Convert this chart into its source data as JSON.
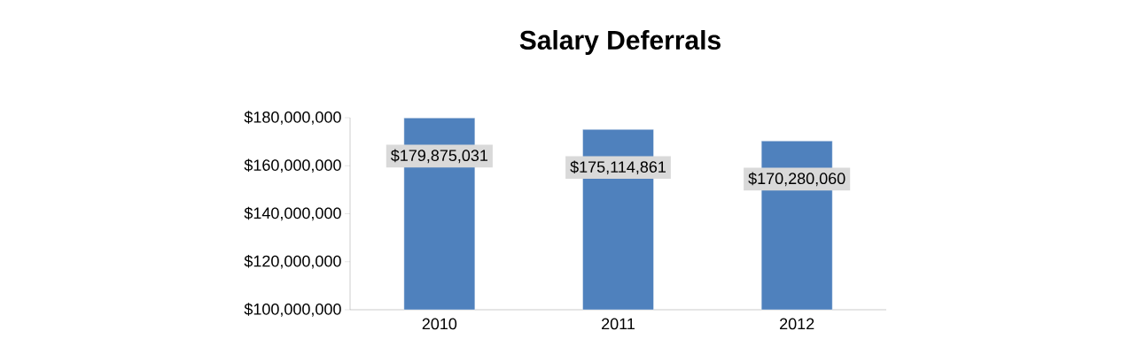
{
  "chart_data": {
    "type": "bar",
    "title": "Salary Deferrals",
    "categories": [
      "2010",
      "2011",
      "2012"
    ],
    "values": [
      179875031,
      175114861,
      170280060
    ],
    "value_labels": [
      "$179,875,031",
      "$175,114,861",
      "$170,280,060"
    ],
    "color": "#4f81bd",
    "ylim": [
      100000000,
      180000000
    ],
    "yticks": [
      {
        "value": 100000000,
        "label": "$100,000,000"
      },
      {
        "value": 120000000,
        "label": "$120,000,000"
      },
      {
        "value": 140000000,
        "label": "$140,000,000"
      },
      {
        "value": 160000000,
        "label": "$160,000,000"
      },
      {
        "value": 180000000,
        "label": "$180,000,000"
      }
    ]
  }
}
